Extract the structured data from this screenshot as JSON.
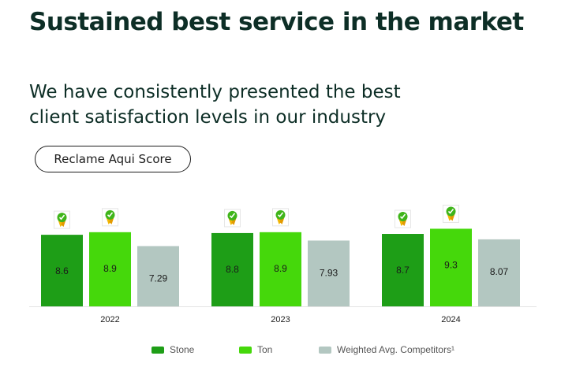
{
  "header": {
    "title": "Sustained best service in the market",
    "subtitle_line1": "We have consistently presented the best",
    "subtitle_line2": "client satisfaction levels in our industry",
    "pill_label": "Reclame Aqui Score"
  },
  "colors": {
    "stone": "#1e9e17",
    "ton": "#45d80b",
    "competitors": "#b3c7c1",
    "badge": "#3fb51a"
  },
  "legend": [
    {
      "name": "Stone",
      "color": "#1e9e17"
    },
    {
      "name": "Ton",
      "color": "#45d80b"
    },
    {
      "name": "Weighted Avg. Competitors¹",
      "color": "#b3c7c1"
    }
  ],
  "chart_data": {
    "type": "bar",
    "title": "Reclame Aqui Score",
    "categories": [
      "2022",
      "2023",
      "2024"
    ],
    "series": [
      {
        "name": "Stone",
        "values": [
          8.6,
          8.8,
          8.7
        ],
        "labels": [
          "8.6",
          "8.8",
          "8.7"
        ],
        "award": [
          true,
          true,
          true
        ]
      },
      {
        "name": "Ton",
        "values": [
          8.9,
          8.9,
          9.3
        ],
        "labels": [
          "8.9",
          "8.9",
          "9.3"
        ],
        "award": [
          true,
          true,
          true
        ]
      },
      {
        "name": "Weighted Avg. Competitors¹",
        "values": [
          7.29,
          7.93,
          8.07
        ],
        "labels": [
          "7.29",
          "7.93",
          "8.07"
        ],
        "award": [
          false,
          false,
          false
        ]
      }
    ],
    "xlabel": "",
    "ylabel": "",
    "grid": false,
    "legend_position": "bottom"
  }
}
